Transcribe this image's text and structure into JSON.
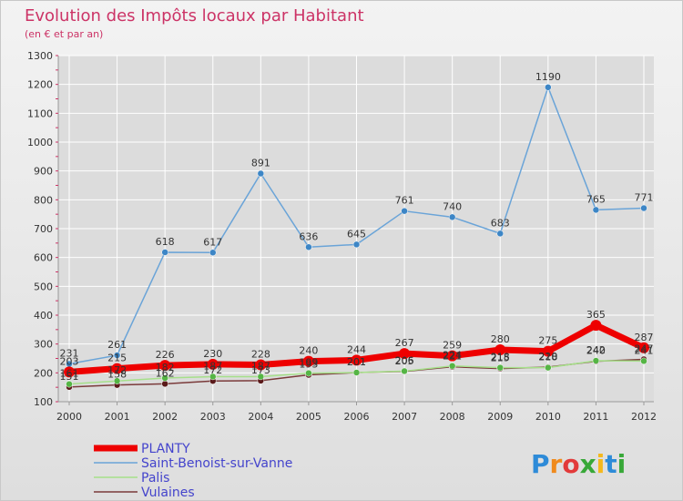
{
  "chart_data": {
    "type": "line",
    "title": "Evolution des Impôts locaux par Habitant",
    "subtitle": "(en € et par an)",
    "x": [
      "2000",
      "2001",
      "2002",
      "2003",
      "2004",
      "2005",
      "2006",
      "2007",
      "2008",
      "2009",
      "2010",
      "2011",
      "2012"
    ],
    "yticks": [
      100,
      200,
      300,
      400,
      500,
      600,
      700,
      800,
      900,
      1000,
      1100,
      1200,
      1300
    ],
    "ylim": [
      100,
      1300
    ],
    "grid": true,
    "legend_position": "bottom-left",
    "series": [
      {
        "name": "PLANTY",
        "color": "#ee0000",
        "values": [
          203,
          215,
          226,
          230,
          228,
          240,
          244,
          267,
          259,
          280,
          275,
          365,
          287
        ]
      },
      {
        "name": "Saint-Benoist-sur-Vanne",
        "color": "#6aa4d8",
        "marker_color": "#3d86c6",
        "values": [
          231,
          261,
          618,
          617,
          891,
          636,
          645,
          761,
          740,
          683,
          1190,
          765,
          771
        ]
      },
      {
        "name": "Palis",
        "color": "#a6e08a",
        "marker_color": "#55b545",
        "values": [
          161,
          172,
          182,
          187,
          187,
          199,
          201,
          206,
          224,
          218,
          218,
          242,
          241
        ]
      },
      {
        "name": "Vulaines",
        "color": "#7a3a3a",
        "marker_color": "#5a1a1a",
        "values": [
          151,
          158,
          162,
          172,
          173,
          193,
          201,
          205,
          221,
          215,
          220,
          240,
          247
        ]
      }
    ]
  },
  "colors": {
    "title": "#cc3366",
    "axis_text": "#333333",
    "grid": "#ffffff",
    "tick_marks": "#cc3366",
    "legend_text": "#4444cc"
  },
  "brand": {
    "text": "Proxiti"
  }
}
